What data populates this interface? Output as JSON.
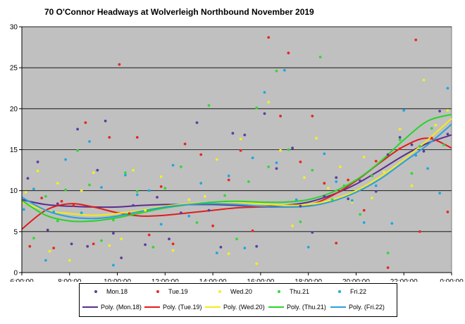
{
  "chart_data": {
    "type": "scatter",
    "title": "70 O'Connor Headways at Wolverleigh Northbound November 2019",
    "xlabel": "",
    "ylabel": "",
    "xlim": [
      "6:00:00",
      "0:00:00"
    ],
    "x_tick_labels": [
      "6:00:00",
      "8:00:00",
      "10:00:00",
      "12:00:00",
      "14:00:00",
      "16:00:00",
      "18:00:00",
      "20:00:00",
      "22:00:00",
      "0:00:00"
    ],
    "ylim": [
      0,
      30
    ],
    "y_tick_labels": [
      "0",
      "5",
      "10",
      "15",
      "20",
      "25",
      "30"
    ],
    "grid": "horizontal",
    "plot_background": "#c0c0c0",
    "legend_position": "bottom",
    "series": [
      {
        "name": "Mon.18",
        "color": "#5b3d9e",
        "points": [
          [
            "6:15",
            11.5
          ],
          [
            "6:40",
            13.5
          ],
          [
            "7:05",
            5.2
          ],
          [
            "7:30",
            8.4
          ],
          [
            "8:05",
            3.5
          ],
          [
            "8:20",
            17.5
          ],
          [
            "8:45",
            3.2
          ],
          [
            "9:10",
            12.5
          ],
          [
            "9:30",
            18.5
          ],
          [
            "9:50",
            4.8
          ],
          [
            "10:10",
            1.8
          ],
          [
            "10:40",
            8.2
          ],
          [
            "11:10",
            3.4
          ],
          [
            "11:40",
            9.2
          ],
          [
            "12:10",
            4.1
          ],
          [
            "12:40",
            7.3
          ],
          [
            "13:20",
            18.3
          ],
          [
            "13:50",
            7.6
          ],
          [
            "14:20",
            3.1
          ],
          [
            "14:50",
            17.0
          ],
          [
            "15:20",
            16.8
          ],
          [
            "15:50",
            3.2
          ],
          [
            "16:10",
            19.4
          ],
          [
            "16:40",
            12.7
          ],
          [
            "17:20",
            15.2
          ],
          [
            "17:40",
            8.1
          ],
          [
            "18:10",
            4.9
          ],
          [
            "18:40",
            9.3
          ],
          [
            "19:10",
            11.6
          ],
          [
            "19:40",
            9.0
          ],
          [
            "20:10",
            11.2
          ],
          [
            "20:50",
            9.9
          ],
          [
            "21:20",
            14.4
          ],
          [
            "21:50",
            16.5
          ],
          [
            "22:20",
            15.6
          ],
          [
            "22:50",
            14.8
          ],
          [
            "23:30",
            19.7
          ],
          [
            "23:50",
            16.9
          ]
        ]
      },
      {
        "name": "Tue.19",
        "color": "#e8281e",
        "points": [
          [
            "6:20",
            3.2
          ],
          [
            "6:50",
            9.1
          ],
          [
            "7:20",
            3.0
          ],
          [
            "7:40",
            8.7
          ],
          [
            "8:10",
            8.2
          ],
          [
            "8:40",
            18.3
          ],
          [
            "9:00",
            3.5
          ],
          [
            "9:40",
            16.5
          ],
          [
            "10:05",
            25.4
          ],
          [
            "10:30",
            7.2
          ],
          [
            "10:50",
            16.5
          ],
          [
            "11:20",
            4.6
          ],
          [
            "11:50",
            10.5
          ],
          [
            "12:20",
            3.5
          ],
          [
            "12:50",
            15.7
          ],
          [
            "13:30",
            14.4
          ],
          [
            "14:00",
            5.7
          ],
          [
            "14:40",
            11.3
          ],
          [
            "15:10",
            14.9
          ],
          [
            "15:40",
            5.1
          ],
          [
            "16:20",
            28.7
          ],
          [
            "16:50",
            19.1
          ],
          [
            "17:10",
            26.8
          ],
          [
            "17:40",
            13.5
          ],
          [
            "18:10",
            19.1
          ],
          [
            "18:40",
            10.9
          ],
          [
            "19:10",
            3.6
          ],
          [
            "19:40",
            11.3
          ],
          [
            "20:20",
            7.6
          ],
          [
            "20:50",
            13.6
          ],
          [
            "21:20",
            0.6
          ],
          [
            "21:50",
            15.1
          ],
          [
            "22:30",
            28.4
          ],
          [
            "22:40",
            5.0
          ],
          [
            "23:10",
            16.4
          ],
          [
            "23:50",
            7.4
          ]
        ]
      },
      {
        "name": "Wed.20",
        "color": "#f2ee2a",
        "points": [
          [
            "6:10",
            9.8
          ],
          [
            "6:40",
            12.4
          ],
          [
            "7:10",
            2.6
          ],
          [
            "7:30",
            10.9
          ],
          [
            "8:00",
            1.5
          ],
          [
            "8:30",
            10.0
          ],
          [
            "9:00",
            12.2
          ],
          [
            "9:40",
            3.3
          ],
          [
            "10:10",
            4.1
          ],
          [
            "10:40",
            12.5
          ],
          [
            "11:10",
            7.6
          ],
          [
            "11:50",
            11.7
          ],
          [
            "12:20",
            2.7
          ],
          [
            "13:00",
            8.9
          ],
          [
            "13:40",
            9.3
          ],
          [
            "14:10",
            13.8
          ],
          [
            "14:40",
            2.3
          ],
          [
            "15:10",
            16.3
          ],
          [
            "15:50",
            1.1
          ],
          [
            "16:20",
            20.8
          ],
          [
            "16:50",
            14.9
          ],
          [
            "17:20",
            5.7
          ],
          [
            "17:50",
            11.6
          ],
          [
            "18:20",
            16.4
          ],
          [
            "18:50",
            10.3
          ],
          [
            "19:20",
            12.9
          ],
          [
            "19:50",
            8.6
          ],
          [
            "20:20",
            14.1
          ],
          [
            "20:40",
            9.1
          ],
          [
            "21:10",
            12.3
          ],
          [
            "21:50",
            17.5
          ],
          [
            "22:20",
            10.6
          ],
          [
            "22:50",
            23.5
          ],
          [
            "23:20",
            18.0
          ],
          [
            "23:50",
            19.8
          ]
        ]
      },
      {
        "name": "Thu.21",
        "color": "#35d635",
        "points": [
          [
            "6:30",
            4.2
          ],
          [
            "7:00",
            9.3
          ],
          [
            "7:30",
            6.3
          ],
          [
            "7:50",
            10.1
          ],
          [
            "8:20",
            14.9
          ],
          [
            "8:50",
            10.7
          ],
          [
            "9:20",
            3.9
          ],
          [
            "9:50",
            6.4
          ],
          [
            "10:20",
            12.2
          ],
          [
            "10:50",
            9.9
          ],
          [
            "11:30",
            3.1
          ],
          [
            "12:00",
            10.3
          ],
          [
            "12:40",
            12.9
          ],
          [
            "13:20",
            6.1
          ],
          [
            "13:50",
            20.4
          ],
          [
            "14:30",
            9.4
          ],
          [
            "15:00",
            4.1
          ],
          [
            "15:30",
            11.1
          ],
          [
            "15:50",
            20.1
          ],
          [
            "16:20",
            12.9
          ],
          [
            "16:40",
            24.6
          ],
          [
            "17:10",
            15.0
          ],
          [
            "17:40",
            6.2
          ],
          [
            "18:10",
            12.5
          ],
          [
            "18:30",
            26.3
          ],
          [
            "19:00",
            8.9
          ],
          [
            "19:30",
            10.6
          ],
          [
            "20:10",
            7.1
          ],
          [
            "20:40",
            11.8
          ],
          [
            "21:20",
            2.4
          ],
          [
            "21:50",
            16.2
          ],
          [
            "22:20",
            12.1
          ],
          [
            "22:40",
            15.4
          ],
          [
            "23:10",
            17.6
          ],
          [
            "23:40",
            15.6
          ]
        ]
      },
      {
        "name": "Fri.22",
        "color": "#20a7e0",
        "points": [
          [
            "6:05",
            7.7
          ],
          [
            "6:30",
            10.2
          ],
          [
            "7:00",
            1.5
          ],
          [
            "7:20",
            7.4
          ],
          [
            "7:50",
            13.8
          ],
          [
            "8:30",
            7.3
          ],
          [
            "8:50",
            16.0
          ],
          [
            "9:20",
            10.4
          ],
          [
            "9:50",
            0.9
          ],
          [
            "10:20",
            11.9
          ],
          [
            "10:50",
            9.5
          ],
          [
            "11:20",
            10.0
          ],
          [
            "11:50",
            5.9
          ],
          [
            "12:20",
            13.1
          ],
          [
            "13:00",
            6.9
          ],
          [
            "13:30",
            10.9
          ],
          [
            "14:10",
            2.4
          ],
          [
            "14:40",
            11.8
          ],
          [
            "15:20",
            3.0
          ],
          [
            "15:40",
            14.0
          ],
          [
            "16:10",
            22.0
          ],
          [
            "16:40",
            13.4
          ],
          [
            "17:00",
            24.7
          ],
          [
            "17:30",
            8.9
          ],
          [
            "18:00",
            3.1
          ],
          [
            "18:40",
            14.5
          ],
          [
            "19:10",
            11.1
          ],
          [
            "19:50",
            8.8
          ],
          [
            "20:20",
            6.1
          ],
          [
            "20:50",
            10.6
          ],
          [
            "21:30",
            6.0
          ],
          [
            "22:00",
            19.8
          ],
          [
            "22:30",
            14.3
          ],
          [
            "23:00",
            12.7
          ],
          [
            "23:30",
            9.7
          ],
          [
            "23:50",
            22.5
          ]
        ]
      }
    ],
    "trendlines": [
      {
        "name": "Poly. (Mon.18)",
        "color": "#5b2d8e",
        "points": [
          [
            "6:00",
            8.9
          ],
          [
            "7:00",
            8.3
          ],
          [
            "8:00",
            8.1
          ],
          [
            "9:00",
            8.0
          ],
          [
            "10:00",
            8.0
          ],
          [
            "11:00",
            8.2
          ],
          [
            "12:00",
            8.3
          ],
          [
            "13:00",
            8.3
          ],
          [
            "14:00",
            8.3
          ],
          [
            "15:00",
            8.2
          ],
          [
            "16:00",
            8.1
          ],
          [
            "17:00",
            8.2
          ],
          [
            "18:00",
            8.6
          ],
          [
            "19:00",
            9.5
          ],
          [
            "20:00",
            10.8
          ],
          [
            "21:00",
            12.5
          ],
          [
            "22:00",
            14.3
          ],
          [
            "23:00",
            15.8
          ],
          [
            "24:00",
            16.8
          ]
        ]
      },
      {
        "name": "Poly. (Tue.19)",
        "color": "#e21c1c",
        "points": [
          [
            "6:00",
            5.3
          ],
          [
            "7:00",
            7.6
          ],
          [
            "8:00",
            8.4
          ],
          [
            "9:00",
            8.0
          ],
          [
            "10:00",
            7.3
          ],
          [
            "11:00",
            6.9
          ],
          [
            "12:00",
            7.0
          ],
          [
            "13:00",
            7.3
          ],
          [
            "14:00",
            7.6
          ],
          [
            "15:00",
            7.9
          ],
          [
            "16:00",
            8.0
          ],
          [
            "17:00",
            8.0
          ],
          [
            "18:00",
            8.2
          ],
          [
            "19:00",
            9.4
          ],
          [
            "20:00",
            11.2
          ],
          [
            "21:00",
            13.4
          ],
          [
            "22:00",
            15.4
          ],
          [
            "23:00",
            16.4
          ],
          [
            "24:00",
            15.2
          ]
        ]
      },
      {
        "name": "Poly. (Wed.20)",
        "color": "#f3ea18",
        "points": [
          [
            "6:00",
            8.6
          ],
          [
            "7:00",
            7.6
          ],
          [
            "8:00",
            7.2
          ],
          [
            "9:00",
            7.0
          ],
          [
            "10:00",
            7.2
          ],
          [
            "11:00",
            7.6
          ],
          [
            "12:00",
            8.1
          ],
          [
            "13:00",
            8.4
          ],
          [
            "14:00",
            8.6
          ],
          [
            "15:00",
            8.6
          ],
          [
            "16:00",
            8.4
          ],
          [
            "17:00",
            8.2
          ],
          [
            "18:00",
            8.3
          ],
          [
            "19:00",
            8.9
          ],
          [
            "20:00",
            10.0
          ],
          [
            "21:00",
            11.7
          ],
          [
            "22:00",
            13.8
          ],
          [
            "23:00",
            16.2
          ],
          [
            "24:00",
            18.8
          ]
        ]
      },
      {
        "name": "Poly. (Thu.21)",
        "color": "#28d328",
        "points": [
          [
            "6:00",
            8.8
          ],
          [
            "7:00",
            7.0
          ],
          [
            "8:00",
            6.3
          ],
          [
            "9:00",
            6.3
          ],
          [
            "10:00",
            6.7
          ],
          [
            "11:00",
            7.3
          ],
          [
            "12:00",
            7.9
          ],
          [
            "13:00",
            8.3
          ],
          [
            "14:00",
            8.6
          ],
          [
            "15:00",
            8.7
          ],
          [
            "16:00",
            8.6
          ],
          [
            "17:00",
            8.6
          ],
          [
            "18:00",
            8.9
          ],
          [
            "19:00",
            9.8
          ],
          [
            "20:00",
            11.3
          ],
          [
            "21:00",
            13.5
          ],
          [
            "22:00",
            16.2
          ],
          [
            "23:00",
            18.5
          ],
          [
            "24:00",
            19.3
          ]
        ]
      },
      {
        "name": "Poly. (Fri.22)",
        "color": "#2a9fd9",
        "points": [
          [
            "6:00",
            9.2
          ],
          [
            "7:00",
            7.6
          ],
          [
            "8:00",
            6.8
          ],
          [
            "9:00",
            6.6
          ],
          [
            "10:00",
            6.9
          ],
          [
            "11:00",
            7.5
          ],
          [
            "12:00",
            8.0
          ],
          [
            "13:00",
            8.3
          ],
          [
            "14:00",
            8.4
          ],
          [
            "15:00",
            8.3
          ],
          [
            "16:00",
            8.1
          ],
          [
            "17:00",
            8.0
          ],
          [
            "18:00",
            8.1
          ],
          [
            "19:00",
            8.7
          ],
          [
            "20:00",
            9.8
          ],
          [
            "21:00",
            11.4
          ],
          [
            "22:00",
            13.5
          ],
          [
            "23:00",
            15.6
          ],
          [
            "24:00",
            18.1
          ]
        ]
      }
    ]
  }
}
